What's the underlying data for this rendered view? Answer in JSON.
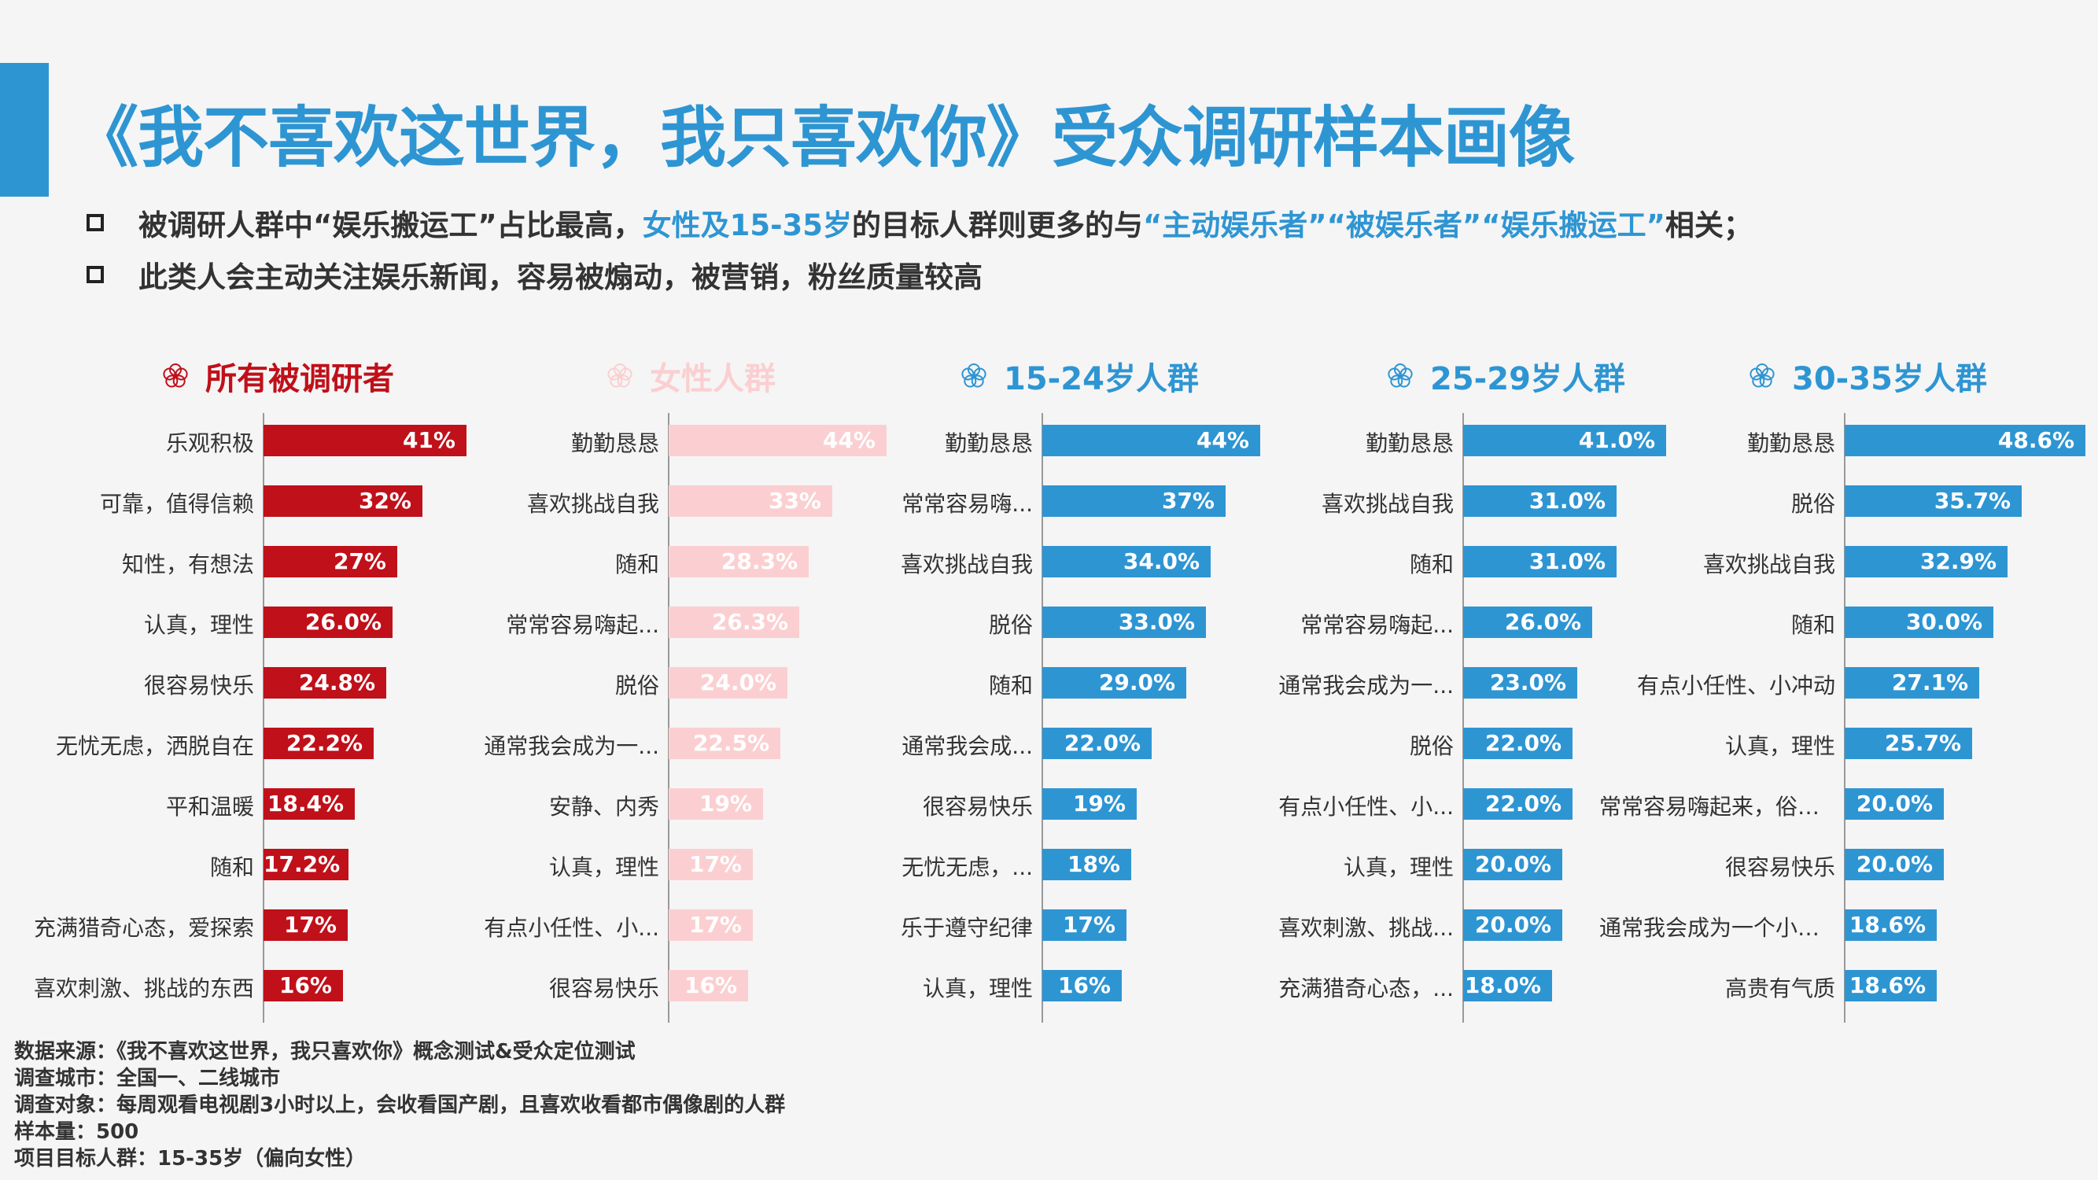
{
  "title": "《我不喜欢这世界，我只喜欢你》受众调研样本画像",
  "bullets": {
    "b1_part1": "被调研人群中“娱乐搬运工”占比最高，",
    "b1_hl1": "女性及15-35岁",
    "b1_part2": "的目标人群则更多的与",
    "b1_hl2": "“主动娱乐者”“被娱乐者”“娱乐搬运工”",
    "b1_part3": "相关；",
    "b2": "此类人会主动关注娱乐新闻，容易被煽动，被营销，粉丝质量较高"
  },
  "colors": {
    "accent": "#2e95d3",
    "red": "#c0101a",
    "pink": "#fbcfd1",
    "blue": "#2e95d3"
  },
  "chart_data": [
    {
      "type": "bar",
      "orientation": "horizontal",
      "title": "所有被调研者",
      "color": "#c0101a",
      "icon": "flower-icon",
      "categories": [
        "乐观积极",
        "可靠，值得信赖",
        "知性，有想法",
        "认真，理性",
        "很容易快乐",
        "无忧无虑，洒脱自在",
        "平和温暖",
        "随和",
        "充满猎奇心态，爱探索",
        "喜欢刺激、挑战的东西"
      ],
      "values": [
        41,
        32,
        27,
        26.0,
        24.8,
        22.2,
        18.4,
        17.2,
        17,
        16
      ],
      "value_labels": [
        "41%",
        "32%",
        "27%",
        "26.0%",
        "24.8%",
        "22.2%",
        "18.4%",
        "17.2%",
        "17%",
        "16%"
      ]
    },
    {
      "type": "bar",
      "orientation": "horizontal",
      "title": "女性人群",
      "color": "#fbcfd1",
      "icon": "flower-icon",
      "categories": [
        "勤勤恳恳",
        "喜欢挑战自我",
        "随和",
        "常常容易嗨起...",
        "脱俗",
        "通常我会成为一...",
        "安静、内秀",
        "认真，理性",
        "有点小任性、小...",
        "很容易快乐"
      ],
      "values": [
        44,
        33,
        28.3,
        26.3,
        24.0,
        22.5,
        19,
        17,
        17,
        16
      ],
      "value_labels": [
        "44%",
        "33%",
        "28.3%",
        "26.3%",
        "24.0%",
        "22.5%",
        "19%",
        "17%",
        "17%",
        "16%"
      ]
    },
    {
      "type": "bar",
      "orientation": "horizontal",
      "title": "15-24岁人群",
      "color": "#2e95d3",
      "icon": "flower-icon",
      "categories": [
        "勤勤恳恳",
        "常常容易嗨...",
        "喜欢挑战自我",
        "脱俗",
        "随和",
        "通常我会成...",
        "很容易快乐",
        "无忧无虑，...",
        "乐于遵守纪律",
        "认真，理性"
      ],
      "values": [
        44,
        37,
        34.0,
        33.0,
        29.0,
        22.0,
        19,
        18,
        17,
        16
      ],
      "value_labels": [
        "44%",
        "37%",
        "34.0%",
        "33.0%",
        "29.0%",
        "22.0%",
        "19%",
        "18%",
        "17%",
        "16%"
      ]
    },
    {
      "type": "bar",
      "orientation": "horizontal",
      "title": "25-29岁人群",
      "color": "#2e95d3",
      "icon": "flower-icon",
      "categories": [
        "勤勤恳恳",
        "喜欢挑战自我",
        "随和",
        "常常容易嗨起...",
        "通常我会成为一...",
        "脱俗",
        "有点小任性、小...",
        "认真，理性",
        "喜欢刺激、挑战...",
        "充满猎奇心态，..."
      ],
      "values": [
        41.0,
        31.0,
        31.0,
        26.0,
        23.0,
        22.0,
        22.0,
        20.0,
        20.0,
        18.0
      ],
      "value_labels": [
        "41.0%",
        "31.0%",
        "31.0%",
        "26.0%",
        "23.0%",
        "22.0%",
        "22.0%",
        "20.0%",
        "20.0%",
        "18.0%"
      ]
    },
    {
      "type": "bar",
      "orientation": "horizontal",
      "title": "30-35岁人群",
      "color": "#2e95d3",
      "icon": "flower-icon",
      "categories": [
        "勤勤恳恳",
        "脱俗",
        "喜欢挑战自我",
        "随和",
        "有点小任性、小冲动",
        "认真，理性",
        "常常容易嗨起来，俗称...",
        "很容易快乐",
        "通常我会成为一个小集...",
        "高贵有气质"
      ],
      "values": [
        48.6,
        35.7,
        32.9,
        30.0,
        27.1,
        25.7,
        20.0,
        20.0,
        18.6,
        18.6
      ],
      "value_labels": [
        "48.6%",
        "35.7%",
        "32.9%",
        "30.0%",
        "27.1%",
        "25.7%",
        "20.0%",
        "20.0%",
        "18.6%",
        "18.6%"
      ]
    }
  ],
  "footer": {
    "line1": "数据来源：《我不喜欢这世界，我只喜欢你》概念测试&受众定位测试",
    "line2": "调查城市：全国一、二线城市",
    "line3": "调查对象：每周观看电视剧3小时以上，会收看国产剧，且喜欢收看都市偶像剧的人群",
    "line4": "样本量：500",
    "line5": "项目目标人群：15-35岁（偏向女性）"
  }
}
